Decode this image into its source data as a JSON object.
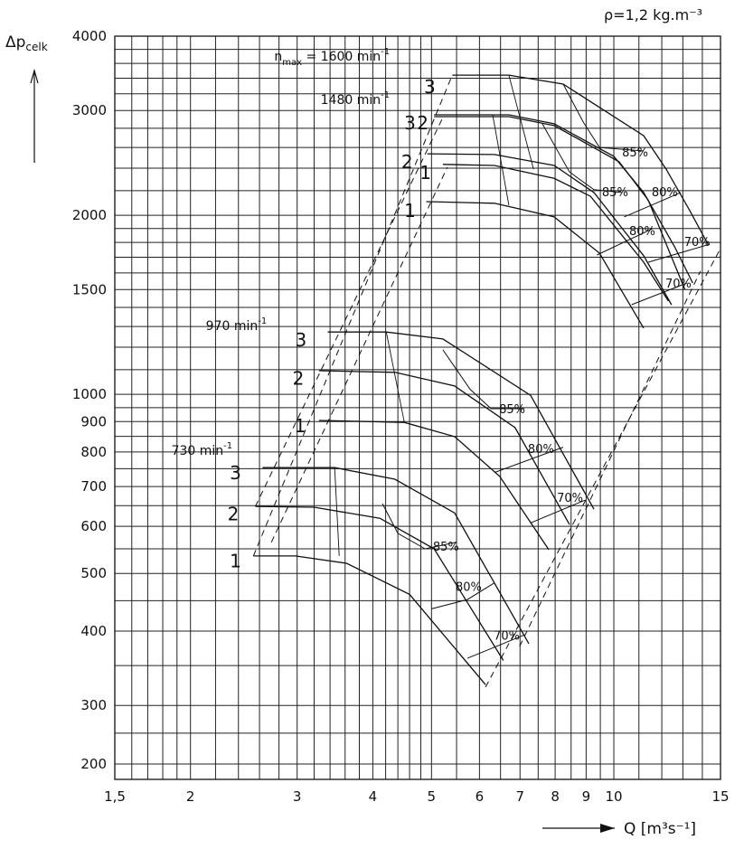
{
  "chart_data": {
    "type": "line",
    "title": "",
    "density_label": "ρ=1,2 kg.m⁻³",
    "ylabel": "Δp",
    "ylabel_sub": "celk",
    "xlabel": "Q  [m³s⁻¹]",
    "x_scale": "log",
    "y_scale": "log",
    "xlim": [
      1.5,
      15
    ],
    "ylim": [
      200,
      4000
    ],
    "grid": true,
    "x_ticks": [
      {
        "value": 1.5,
        "label": "1,5"
      },
      {
        "value": 2,
        "label": "2"
      },
      {
        "value": 3,
        "label": "3"
      },
      {
        "value": 4,
        "label": "4"
      },
      {
        "value": 5,
        "label": "5"
      },
      {
        "value": 6,
        "label": "6"
      },
      {
        "value": 7,
        "label": "7"
      },
      {
        "value": 8,
        "label": "8"
      },
      {
        "value": 9,
        "label": "9"
      },
      {
        "value": 10,
        "label": "10"
      },
      {
        "value": 15,
        "label": "15"
      }
    ],
    "y_ticks": [
      {
        "value": 4000,
        "label": "4000"
      },
      {
        "value": 3000,
        "label": "3000"
      },
      {
        "value": 2000,
        "label": "2000"
      },
      {
        "value": 1500,
        "label": "1500"
      },
      {
        "value": 1000,
        "label": "1000"
      },
      {
        "value": 900,
        "label": "900"
      },
      {
        "value": 800,
        "label": "800"
      },
      {
        "value": 700,
        "label": "700"
      },
      {
        "value": 600,
        "label": "600"
      },
      {
        "value": 500,
        "label": "500"
      },
      {
        "value": 400,
        "label": "400"
      },
      {
        "value": 300,
        "label": "300"
      },
      {
        "value": 200,
        "label": "200"
      }
    ],
    "speed_labels": [
      {
        "text": "n",
        "sub": "max",
        "rest": " = 1600  min",
        "sup": "-1",
        "at": [
          2.75,
          3705
        ]
      },
      {
        "text": "1480  min",
        "sup": "-1",
        "at": [
          3.28,
          3130
        ]
      },
      {
        "text": "970  min",
        "sup": "-1",
        "at": [
          2.12,
          1306
        ]
      },
      {
        "text": "730  min",
        "sup": "-1",
        "at": [
          1.86,
          805
        ]
      }
    ],
    "series": [
      {
        "speed": 1600,
        "blade": "3",
        "label_at": [
          4.96,
          3300
        ],
        "x": [
          5.41,
          6.71,
          8.25,
          11.2,
          12.2,
          13.35,
          14.3
        ],
        "y": [
          3440,
          3440,
          3323,
          2721,
          2391,
          2035,
          1788
        ]
      },
      {
        "speed": 1600,
        "blade": "2",
        "label_at": [
          4.83,
          2870
        ],
        "x": [
          5.05,
          6.71,
          7.97,
          10.0,
          11.2,
          12.6,
          13.5
        ],
        "y": [
          2950,
          2950,
          2850,
          2512,
          2184,
          1770,
          1539
        ]
      },
      {
        "speed": 1480,
        "blade": "3",
        "label_at": [
          4.6,
          2870
        ],
        "x": [
          5.05,
          6.71,
          7.97,
          10.2,
          11.4,
          12.4,
          13.1
        ],
        "y": [
          2930,
          2930,
          2830,
          2460,
          2120,
          1720,
          1500
        ]
      },
      {
        "speed": 1480,
        "blade": "2",
        "label_at": [
          4.55,
          2470
        ],
        "x": [
          4.92,
          6.35,
          7.97,
          9.27,
          11.2,
          12.45
        ],
        "y": [
          2537,
          2530,
          2425,
          2184,
          1710,
          1415
        ]
      },
      {
        "speed": 1600,
        "blade": "1",
        "label_at": [
          4.88,
          2365
        ],
        "x": [
          5.22,
          6.35,
          7.97,
          9.15,
          11.2,
          12.3
        ],
        "y": [
          2435,
          2425,
          2307,
          2152,
          1668,
          1435
        ]
      },
      {
        "speed": 1480,
        "blade": "1",
        "label_at": [
          4.6,
          2044
        ],
        "x": [
          4.9,
          6.35,
          7.97,
          9.47,
          11.2
        ],
        "y": [
          2108,
          2095,
          1987,
          1727,
          1292
        ]
      },
      {
        "speed": 970,
        "blade": "3",
        "label_at": [
          3.04,
          1239
        ],
        "x": [
          3.37,
          4.21,
          5.22,
          7.29,
          9.27
        ],
        "y": [
          1273,
          1273,
          1239,
          996,
          641
        ]
      },
      {
        "speed": 970,
        "blade": "2",
        "label_at": [
          3.01,
          1067
        ],
        "x": [
          3.26,
          4.35,
          5.46,
          6.87,
          8.45
        ],
        "y": [
          1096,
          1089,
          1033,
          879,
          604
        ]
      },
      {
        "speed": 970,
        "blade": "1",
        "label_at": [
          3.03,
          889
        ],
        "x": [
          3.26,
          4.51,
          5.46,
          6.48,
          7.81
        ],
        "y": [
          904,
          897,
          849,
          728,
          548
        ]
      },
      {
        "speed": 730,
        "blade": "3",
        "label_at": [
          2.37,
          740
        ],
        "x": [
          2.63,
          3.46,
          4.35,
          5.46,
          7.24
        ],
        "y": [
          753,
          753,
          720,
          632,
          381
        ]
      },
      {
        "speed": 730,
        "blade": "2",
        "label_at": [
          2.35,
          631
        ],
        "x": [
          2.56,
          3.2,
          4.11,
          5.05,
          6.57
        ],
        "y": [
          648,
          646,
          619,
          550,
          357
        ]
      },
      {
        "speed": 730,
        "blade": "1",
        "label_at": [
          2.37,
          526
        ],
        "x": [
          2.54,
          2.98,
          3.62,
          4.6,
          6.14
        ],
        "y": [
          535,
          535,
          520,
          461,
          325
        ]
      }
    ],
    "efficiency_lines": [
      {
        "label": "85%",
        "label_at": [
          10.9,
          2557
        ],
        "x": [
          8.25,
          8.9,
          9.47,
          11.2
        ],
        "y": [
          3323,
          2870,
          2600,
          2565
        ]
      },
      {
        "label": "85%",
        "label_at": [
          10.1,
          2192
        ],
        "x": [
          7.62,
          8.45,
          9.27,
          10.3
        ],
        "y": [
          2850,
          2365,
          2208,
          2184
        ]
      },
      {
        "label": "80%",
        "label_at": [
          12.2,
          2192
        ],
        "x": [
          10.4,
          12.9
        ],
        "y": [
          1987,
          2184
        ]
      },
      {
        "label": "80%",
        "label_at": [
          11.2,
          1885
        ],
        "x": [
          9.38,
          11.6
        ],
        "y": [
          1715,
          1900
        ]
      },
      {
        "label": "70%",
        "label_at": [
          13.8,
          1808
        ],
        "x": [
          11.4,
          14.4
        ],
        "y": [
          1668,
          1788
        ]
      },
      {
        "label": "70%",
        "label_at": [
          12.85,
          1539
        ],
        "x": [
          10.7,
          13.2
        ],
        "y": [
          1415,
          1539
        ]
      },
      {
        "label": "85%",
        "label_at": [
          6.83,
          946
        ],
        "x": [
          5.22,
          5.79,
          6.27,
          7.11
        ],
        "y": [
          1188,
          1020,
          946,
          946
        ]
      },
      {
        "label": "80%",
        "label_at": [
          7.62,
          811
        ],
        "x": [
          6.35,
          8.25
        ],
        "y": [
          739,
          815
        ]
      },
      {
        "label": "70%",
        "label_at": [
          8.51,
          671
        ],
        "x": [
          7.29,
          8.96
        ],
        "y": [
          608,
          664
        ]
      },
      {
        "label": "85%",
        "label_at": [
          5.31,
          556
        ],
        "x": [
          4.15,
          4.4,
          4.88,
          5.49
        ],
        "y": [
          655,
          584,
          550,
          564
        ]
      },
      {
        "label": "80%",
        "label_at": [
          5.79,
          476
        ],
        "x": [
          5.0,
          5.73,
          6.35
        ],
        "y": [
          436,
          452,
          482
        ]
      },
      {
        "label": "70%",
        "label_at": [
          6.69,
          394
        ],
        "x": [
          5.73,
          7.11
        ],
        "y": [
          360,
          394
        ]
      }
    ],
    "auxiliary_lines": [
      {
        "x": [
          6.71,
          7.37
        ],
        "y": [
          3440,
          2391
        ]
      },
      {
        "x": [
          6.31,
          6.71
        ],
        "y": [
          2950,
          2079
        ]
      },
      {
        "x": [
          4.21,
          4.51
        ],
        "y": [
          1273,
          897
        ]
      },
      {
        "x": [
          3.46,
          3.52
        ],
        "y": [
          753,
          535
        ]
      }
    ],
    "boundary_lines_dashed": [
      {
        "x": [
          2.54,
          5.41
        ],
        "y": [
          535,
          3440
        ]
      },
      {
        "x": [
          2.56,
          5.22
        ],
        "y": [
          648,
          2920
        ]
      },
      {
        "x": [
          2.72,
          5.31
        ],
        "y": [
          564,
          2408
        ]
      },
      {
        "x": [
          6.14,
          15.0
        ],
        "y": [
          322,
          1759
        ]
      },
      {
        "x": [
          6.99,
          13.9
        ],
        "y": [
          377,
          1611
        ]
      }
    ]
  }
}
